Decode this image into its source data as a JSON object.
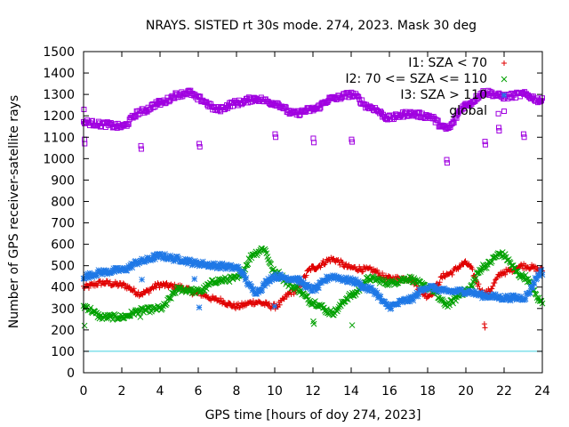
{
  "chart_data": {
    "type": "scatter",
    "title": "NRAYS. SISTED rt 30s mode. 274, 2023. Mask 30 deg",
    "xlabel": "GPS time [hours of doy 274, 2023]",
    "ylabel": "Number of GPS receiver-satellite rays",
    "xlim": [
      0,
      24
    ],
    "ylim": [
      0,
      1500
    ],
    "xticks": [
      "0",
      "2",
      "4",
      "6",
      "8",
      "10",
      "12",
      "14",
      "16",
      "18",
      "20",
      "22",
      "24"
    ],
    "yticks": [
      "0",
      "100",
      "200",
      "300",
      "400",
      "500",
      "600",
      "700",
      "800",
      "900",
      "1000",
      "1100",
      "1200",
      "1300",
      "1400",
      "1500"
    ],
    "threshold": {
      "y": 100,
      "color": "#40d0e0"
    },
    "series": [
      {
        "name": "I1: SZA < 70",
        "marker": "+",
        "color": "#e00000",
        "key_x": [
          0,
          1,
          2,
          3,
          4,
          5,
          6,
          7,
          8,
          9,
          10,
          11,
          12,
          13,
          14,
          15,
          16,
          17,
          18,
          19,
          20,
          21,
          22,
          23,
          24
        ],
        "key_y": [
          400,
          420,
          410,
          370,
          410,
          400,
          370,
          340,
          310,
          330,
          310,
          380,
          490,
          530,
          490,
          480,
          440,
          440,
          360,
          460,
          510,
          370,
          470,
          500,
          480
        ],
        "outliers": [
          {
            "x": 20.97,
            "y": 228
          },
          {
            "x": 21.0,
            "y": 210
          }
        ]
      },
      {
        "name": "I2: 70 <= SZA <= 110",
        "marker": "x",
        "color": "#00a000",
        "key_x": [
          0,
          1,
          2,
          3,
          4,
          5,
          6,
          7,
          8,
          9,
          9.4,
          10,
          11,
          12,
          13,
          14,
          15,
          16,
          17,
          18,
          19,
          20,
          21,
          21.8,
          23,
          24
        ],
        "key_y": [
          310,
          260,
          260,
          290,
          300,
          390,
          380,
          430,
          440,
          560,
          580,
          470,
          400,
          330,
          280,
          360,
          440,
          420,
          440,
          400,
          320,
          380,
          500,
          555,
          450,
          330
        ],
        "outliers": [
          {
            "x": 0.05,
            "y": 220
          },
          {
            "x": 2.97,
            "y": 260
          },
          {
            "x": 12.02,
            "y": 240
          },
          {
            "x": 12.05,
            "y": 228
          },
          {
            "x": 14.05,
            "y": 222
          }
        ]
      },
      {
        "name": "I3: SZA > 110",
        "marker": "*",
        "color": "#1f78e6",
        "key_x": [
          0,
          1,
          2,
          3,
          4,
          5,
          6,
          7,
          8,
          9,
          10,
          11,
          12,
          13,
          14,
          15,
          16,
          17,
          18,
          19,
          20,
          21,
          22,
          23,
          24
        ],
        "key_y": [
          450,
          470,
          480,
          520,
          545,
          530,
          510,
          500,
          490,
          380,
          450,
          440,
          390,
          450,
          430,
          390,
          310,
          340,
          400,
          380,
          380,
          360,
          350,
          350,
          470
        ],
        "outliers": [
          {
            "x": 0.02,
            "y": 440
          },
          {
            "x": 3.05,
            "y": 435
          },
          {
            "x": 5.8,
            "y": 438
          },
          {
            "x": 6.05,
            "y": 305
          },
          {
            "x": 10.0,
            "y": 310
          }
        ]
      },
      {
        "name": "global",
        "marker": "square",
        "color": "#a000e0",
        "key_x": [
          0,
          1,
          2,
          3,
          4,
          5,
          5.5,
          6,
          7,
          8,
          9,
          10,
          11,
          12,
          13,
          14,
          15,
          16,
          17,
          18,
          19,
          20,
          21,
          22,
          23,
          24
        ],
        "key_y": [
          1170,
          1160,
          1150,
          1220,
          1260,
          1300,
          1310,
          1280,
          1230,
          1260,
          1280,
          1260,
          1210,
          1230,
          1280,
          1300,
          1240,
          1190,
          1210,
          1200,
          1140,
          1250,
          1310,
          1290,
          1300,
          1270
        ],
        "outliers": [
          {
            "x": 0.02,
            "y": 1230
          },
          {
            "x": 0.05,
            "y": 1090
          },
          {
            "x": 0.06,
            "y": 1070
          },
          {
            "x": 3.0,
            "y": 1060
          },
          {
            "x": 3.02,
            "y": 1045
          },
          {
            "x": 6.05,
            "y": 1070
          },
          {
            "x": 6.08,
            "y": 1055
          },
          {
            "x": 10.02,
            "y": 1115
          },
          {
            "x": 10.05,
            "y": 1100
          },
          {
            "x": 12.02,
            "y": 1095
          },
          {
            "x": 12.05,
            "y": 1075
          },
          {
            "x": 14.02,
            "y": 1090
          },
          {
            "x": 14.05,
            "y": 1078
          },
          {
            "x": 19.0,
            "y": 995
          },
          {
            "x": 19.02,
            "y": 980
          },
          {
            "x": 21.0,
            "y": 1080
          },
          {
            "x": 21.02,
            "y": 1065
          },
          {
            "x": 21.7,
            "y": 1210
          },
          {
            "x": 21.72,
            "y": 1145
          },
          {
            "x": 21.74,
            "y": 1130
          },
          {
            "x": 23.02,
            "y": 1115
          },
          {
            "x": 23.05,
            "y": 1100
          }
        ]
      }
    ]
  }
}
